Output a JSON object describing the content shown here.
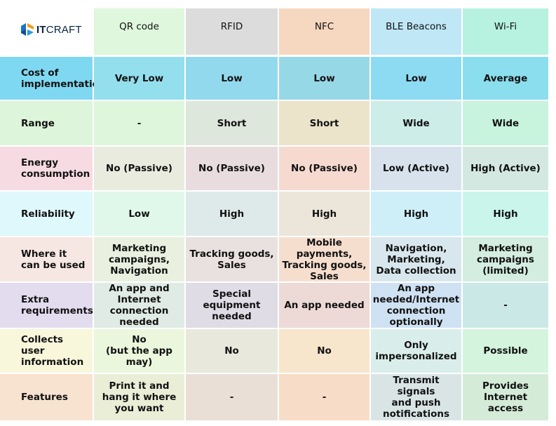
{
  "brand": {
    "logo_bold": "IT",
    "logo_light": "CRAFT"
  },
  "colors": {
    "col_qr": "#dff7dc",
    "col_rfid": "#dcdcdc",
    "col_nfc": "#f6d7bf",
    "col_ble": "#bfe7f6",
    "col_wifi": "#b6f2df",
    "row_cost": "#7fd8f1",
    "row_range": "#ddf5da",
    "row_energy": "#f6dbe3",
    "row_reliability": "#dff8fb",
    "row_where": "#f6e7e2",
    "row_extra": "#e3dcef",
    "row_collects": "#f8f7dc",
    "row_features": "#f8e2d0"
  },
  "columns": [
    "QR code",
    "RFID",
    "NFC",
    "BLE Beacons",
    "Wi-Fi"
  ],
  "rows": [
    {
      "label": [
        "Cost of",
        "implementation"
      ],
      "cells": [
        [
          "Very Low"
        ],
        [
          "Low"
        ],
        [
          "Low"
        ],
        [
          "Low"
        ],
        [
          "Average"
        ]
      ]
    },
    {
      "label": [
        "Range"
      ],
      "cells": [
        [
          "-"
        ],
        [
          "Short"
        ],
        [
          "Short"
        ],
        [
          "Wide"
        ],
        [
          "Wide"
        ]
      ]
    },
    {
      "label": [
        "Energy",
        "consumption"
      ],
      "cells": [
        [
          "No (Passive)"
        ],
        [
          "No (Passive)"
        ],
        [
          "No (Passive)"
        ],
        [
          "Low (Active)"
        ],
        [
          "High (Active)"
        ]
      ]
    },
    {
      "label": [
        "Reliability"
      ],
      "cells": [
        [
          "Low"
        ],
        [
          "High"
        ],
        [
          "High"
        ],
        [
          "High"
        ],
        [
          "High"
        ]
      ]
    },
    {
      "label": [
        "Where it",
        "can be used"
      ],
      "cells": [
        [
          "Marketing",
          "campaigns,",
          "Navigation"
        ],
        [
          "Tracking goods,",
          "Sales"
        ],
        [
          "Mobile payments,",
          "Tracking goods,",
          "Sales"
        ],
        [
          "Navigation,",
          "Marketing,",
          "Data collection"
        ],
        [
          "Marketing",
          "campaigns",
          "(limited)"
        ]
      ]
    },
    {
      "label": [
        "Extra",
        "requirements"
      ],
      "cells": [
        [
          "An app and",
          "Internet connection",
          "needed"
        ],
        [
          "Special",
          "equipment",
          "needed"
        ],
        [
          "An app needed"
        ],
        [
          "An app",
          "needed/Internet",
          "connection",
          "optionally"
        ],
        [
          "-"
        ]
      ]
    },
    {
      "label": [
        "Collects",
        "user",
        "information"
      ],
      "cells": [
        [
          "No",
          "(but the app may)"
        ],
        [
          "No"
        ],
        [
          "No"
        ],
        [
          "Only",
          "impersonalized"
        ],
        [
          "Possible"
        ]
      ]
    },
    {
      "label": [
        "Features"
      ],
      "cells": [
        [
          "Print it and",
          "hang it where",
          "you want"
        ],
        [
          "-"
        ],
        [
          "-"
        ],
        [
          "Transmit signals",
          "and push",
          "notifications"
        ],
        [
          "Provides",
          "Internet access"
        ]
      ]
    }
  ]
}
